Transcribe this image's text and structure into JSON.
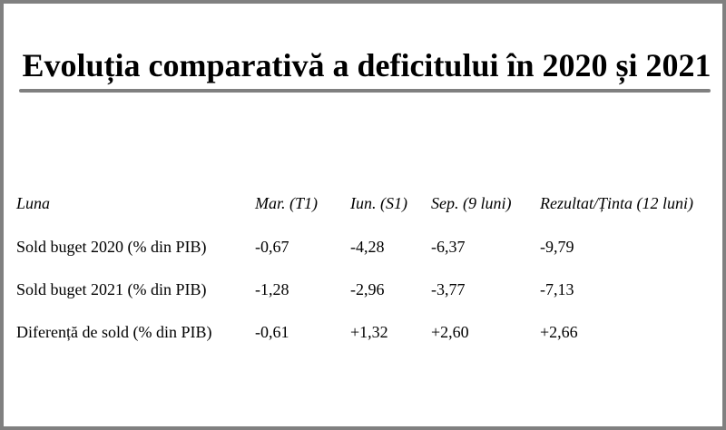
{
  "title": "Evoluția comparativă a deficitului în 2020 și 2021",
  "chart_data": {
    "type": "table",
    "title": "Evoluția comparativă a deficitului în 2020 și 2021",
    "columns": [
      "Luna",
      "Mar. (T1)",
      "Iun. (S1)",
      "Sep. (9 luni)",
      "Rezultat/Ținta (12 luni)"
    ],
    "rows": [
      {
        "label": "Sold buget 2020 (% din PIB)",
        "values": [
          "-0,67",
          "-4,28",
          "-6,37",
          "-9,79"
        ]
      },
      {
        "label": "Sold buget 2021 (% din PIB)",
        "values": [
          "-1,28",
          "-2,96",
          "-3,77",
          "-7,13"
        ]
      },
      {
        "label": "Diferență de sold (% din PIB)",
        "values": [
          "-0,61",
          "+1,32",
          "+2,60",
          "+2,66"
        ]
      }
    ]
  },
  "colors": {
    "frame": "#808080",
    "rule": "#808080",
    "text": "#000000",
    "background": "#ffffff"
  }
}
